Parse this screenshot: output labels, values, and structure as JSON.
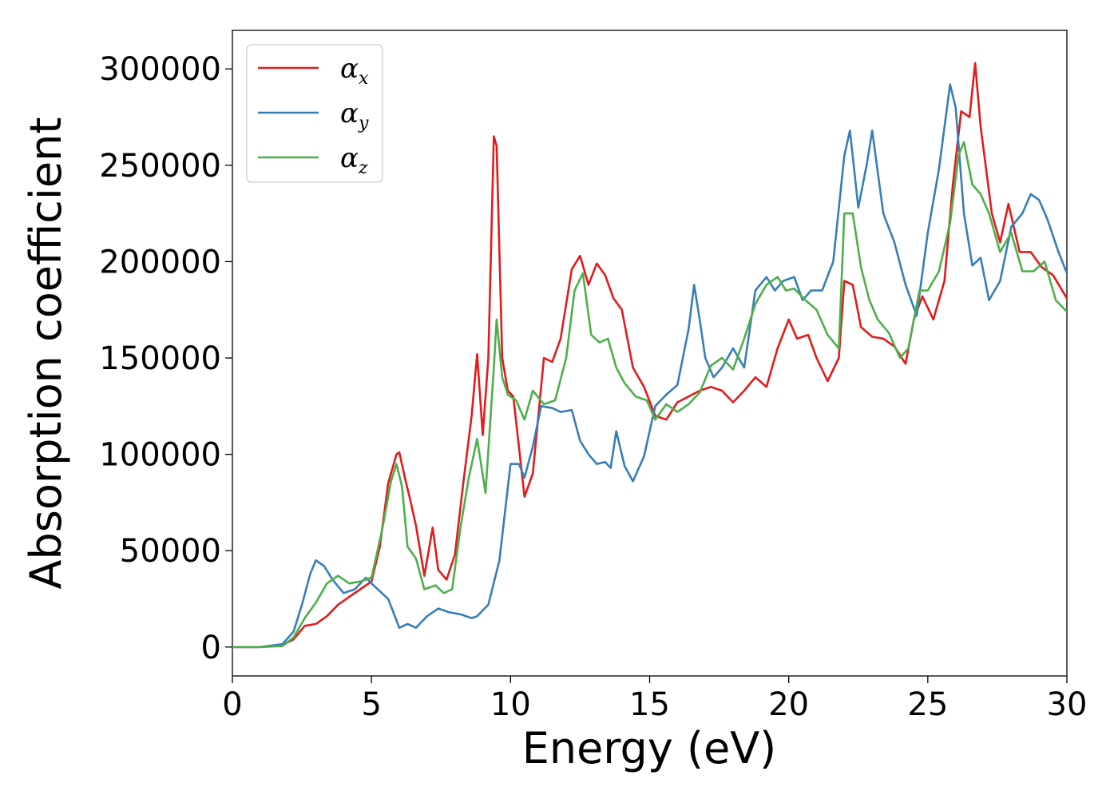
{
  "chart_data": {
    "type": "line",
    "xlabel": "Energy (eV)",
    "ylabel": "Absorption coefficient",
    "xlim": [
      0,
      30
    ],
    "ylim": [
      -15000,
      320000
    ],
    "xticks": [
      0,
      5,
      10,
      15,
      20,
      25,
      30
    ],
    "xtick_labels": [
      "0",
      "5",
      "10",
      "15",
      "20",
      "25",
      "30"
    ],
    "yticks": [
      0,
      50000,
      100000,
      150000,
      200000,
      250000,
      300000
    ],
    "ytick_labels": [
      "0",
      "50000",
      "100000",
      "150000",
      "200000",
      "250000",
      "300000"
    ],
    "grid": false,
    "legend_position": "top-left",
    "series": [
      {
        "name": "α",
        "subscript": "x",
        "color": "#e41a1c",
        "x": [
          0,
          1,
          1.8,
          2.2,
          2.6,
          3.0,
          3.4,
          3.8,
          4.2,
          4.6,
          5.0,
          5.3,
          5.6,
          5.9,
          6.0,
          6.2,
          6.4,
          6.6,
          6.9,
          7.2,
          7.4,
          7.7,
          8.0,
          8.3,
          8.6,
          8.8,
          9.0,
          9.2,
          9.4,
          9.5,
          9.7,
          9.9,
          10.1,
          10.5,
          10.8,
          11.2,
          11.5,
          11.8,
          12.2,
          12.5,
          12.8,
          13.1,
          13.4,
          13.7,
          14.0,
          14.4,
          14.8,
          15.2,
          15.6,
          16.0,
          16.4,
          16.8,
          17.2,
          17.6,
          18.0,
          18.4,
          18.8,
          19.2,
          19.6,
          20.0,
          20.3,
          20.7,
          21.0,
          21.4,
          21.8,
          22.0,
          22.3,
          22.6,
          23.0,
          23.4,
          23.8,
          24.2,
          24.5,
          24.8,
          25.2,
          25.6,
          25.9,
          26.2,
          26.5,
          26.7,
          26.9,
          27.3,
          27.6,
          27.9,
          28.3,
          28.7,
          29.1,
          29.5,
          30.0
        ],
        "y": [
          0,
          0,
          1000,
          4000,
          11000,
          12000,
          16000,
          22000,
          26000,
          30000,
          34000,
          52000,
          85000,
          100000,
          101000,
          88000,
          76000,
          63000,
          37000,
          62000,
          40000,
          35000,
          48000,
          85000,
          120000,
          152000,
          110000,
          150000,
          265000,
          260000,
          150000,
          133000,
          130000,
          78000,
          90000,
          150000,
          148000,
          160000,
          196000,
          203000,
          188000,
          199000,
          193000,
          181000,
          175000,
          145000,
          135000,
          120000,
          118000,
          127000,
          130000,
          133000,
          135000,
          133000,
          127000,
          133000,
          140000,
          135000,
          155000,
          170000,
          160000,
          162000,
          150000,
          138000,
          150000,
          190000,
          188000,
          166000,
          161000,
          160000,
          156000,
          147000,
          170000,
          182000,
          170000,
          190000,
          240000,
          278000,
          275000,
          303000,
          270000,
          225000,
          210000,
          230000,
          205000,
          205000,
          197000,
          193000,
          181000
        ]
      },
      {
        "name": "α",
        "subscript": "y",
        "color": "#377eb8",
        "x": [
          0,
          1,
          1.8,
          2.2,
          2.5,
          2.8,
          3.0,
          3.3,
          3.6,
          4.0,
          4.4,
          4.8,
          5.0,
          5.3,
          5.6,
          6.0,
          6.3,
          6.6,
          7.0,
          7.4,
          7.8,
          8.2,
          8.6,
          8.8,
          9.2,
          9.6,
          10.0,
          10.3,
          10.5,
          10.8,
          11.1,
          11.5,
          11.8,
          12.2,
          12.5,
          12.8,
          13.1,
          13.4,
          13.6,
          13.8,
          14.1,
          14.4,
          14.8,
          15.2,
          15.6,
          16.0,
          16.4,
          16.6,
          16.8,
          17.0,
          17.3,
          17.6,
          18.0,
          18.4,
          18.8,
          19.2,
          19.5,
          19.8,
          20.2,
          20.5,
          20.8,
          21.2,
          21.6,
          22.0,
          22.2,
          22.5,
          22.8,
          23.0,
          23.4,
          23.8,
          24.2,
          24.6,
          25.0,
          25.4,
          25.8,
          26.0,
          26.3,
          26.6,
          26.9,
          27.2,
          27.6,
          28.0,
          28.4,
          28.7,
          29.0,
          29.3,
          29.7,
          30.0
        ],
        "y": [
          0,
          0,
          1500,
          8000,
          22000,
          38000,
          45000,
          42000,
          35000,
          28000,
          30000,
          36000,
          33000,
          29000,
          25000,
          10000,
          12000,
          10000,
          16000,
          20000,
          18000,
          17000,
          15000,
          16000,
          22000,
          45000,
          95000,
          95000,
          88000,
          104000,
          125000,
          124000,
          122000,
          123000,
          107000,
          100000,
          95000,
          96000,
          93000,
          112000,
          94000,
          86000,
          99000,
          125000,
          131000,
          136000,
          165000,
          188000,
          170000,
          150000,
          140000,
          145000,
          155000,
          145000,
          185000,
          192000,
          185000,
          190000,
          192000,
          180000,
          185000,
          185000,
          200000,
          255000,
          268000,
          228000,
          250000,
          268000,
          225000,
          210000,
          188000,
          172000,
          215000,
          248000,
          292000,
          280000,
          225000,
          198000,
          202000,
          180000,
          190000,
          218000,
          225000,
          235000,
          232000,
          222000,
          205000,
          194000
        ]
      },
      {
        "name": "α",
        "subscript": "z",
        "color": "#4daf4a",
        "x": [
          0,
          1,
          1.8,
          2.2,
          2.6,
          3.0,
          3.4,
          3.8,
          4.2,
          4.6,
          5.0,
          5.4,
          5.7,
          5.9,
          6.1,
          6.3,
          6.6,
          6.9,
          7.3,
          7.6,
          7.9,
          8.2,
          8.5,
          8.8,
          9.1,
          9.4,
          9.5,
          9.7,
          9.9,
          10.2,
          10.5,
          10.8,
          11.2,
          11.6,
          12.0,
          12.3,
          12.6,
          12.9,
          13.2,
          13.5,
          13.8,
          14.1,
          14.5,
          14.9,
          15.2,
          15.6,
          16.0,
          16.4,
          16.8,
          17.2,
          17.6,
          18.0,
          18.4,
          18.8,
          19.2,
          19.6,
          19.9,
          20.2,
          20.6,
          21.0,
          21.4,
          21.8,
          22.0,
          22.3,
          22.6,
          22.9,
          23.2,
          23.6,
          24.0,
          24.3,
          24.7,
          25.0,
          25.4,
          25.8,
          26.1,
          26.3,
          26.6,
          26.9,
          27.2,
          27.6,
          28.0,
          28.4,
          28.8,
          29.2,
          29.6,
          30.0
        ],
        "y": [
          0,
          0,
          500,
          5000,
          15000,
          23000,
          33000,
          37000,
          33000,
          34000,
          36000,
          62000,
          86000,
          95000,
          83000,
          52000,
          46000,
          30000,
          32000,
          28000,
          30000,
          62000,
          88000,
          108000,
          80000,
          145000,
          170000,
          140000,
          131000,
          128000,
          118000,
          133000,
          126000,
          128000,
          150000,
          185000,
          194000,
          162000,
          158000,
          160000,
          145000,
          137000,
          130000,
          128000,
          118000,
          126000,
          122000,
          126000,
          132000,
          146000,
          150000,
          144000,
          160000,
          178000,
          188000,
          192000,
          185000,
          186000,
          180000,
          175000,
          162000,
          155000,
          225000,
          225000,
          197000,
          180000,
          170000,
          163000,
          150000,
          155000,
          185000,
          185000,
          195000,
          220000,
          255000,
          262000,
          240000,
          235000,
          225000,
          205000,
          215000,
          195000,
          195000,
          200000,
          180000,
          174000
        ]
      }
    ]
  }
}
